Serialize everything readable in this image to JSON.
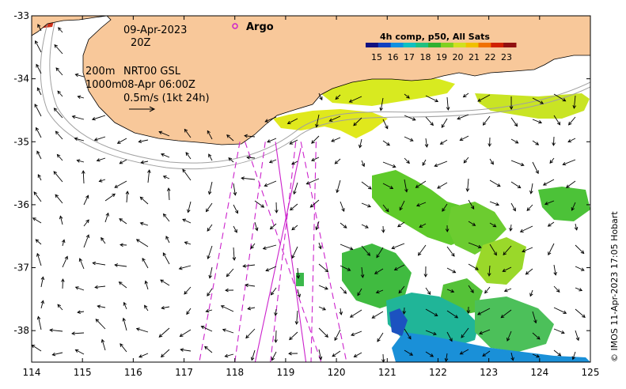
{
  "map": {
    "lon_range": [
      114,
      125
    ],
    "lat_range": [
      -38.5,
      -33
    ],
    "x_ticks": [
      "114",
      "115",
      "116",
      "117",
      "118",
      "119",
      "120",
      "121",
      "122",
      "123",
      "124",
      "125"
    ],
    "y_ticks": [
      "-33",
      "-34",
      "-35",
      "-36",
      "-37",
      "-38"
    ],
    "colors": {
      "land": "#f8c89a",
      "track": "#cc22cc",
      "arrow": "#000000",
      "contour": "#999999"
    }
  },
  "annotations": {
    "date": "09-Apr-2023",
    "hour": "20Z",
    "line1_left": "200m",
    "line1_right": "NRT00 GSL",
    "line2_left": "1000m",
    "line2_right": "08-Apr 06:00Z",
    "speed_scale": "0.5m/s (1kt 24h)",
    "argo_label": "Argo"
  },
  "colorbar": {
    "title": "4h comp, p50, All Sats",
    "labels": [
      "15",
      "16",
      "17",
      "18",
      "19",
      "20",
      "21",
      "22",
      "23"
    ],
    "colors": [
      "#101080",
      "#1040c0",
      "#1090e0",
      "#10c0c0",
      "#20c080",
      "#30b030",
      "#80d020",
      "#d0e020",
      "#f0c000",
      "#f07000",
      "#d02000",
      "#901010"
    ]
  },
  "credit": "© IMOS 11-Apr-2023 17:05 Hobart"
}
